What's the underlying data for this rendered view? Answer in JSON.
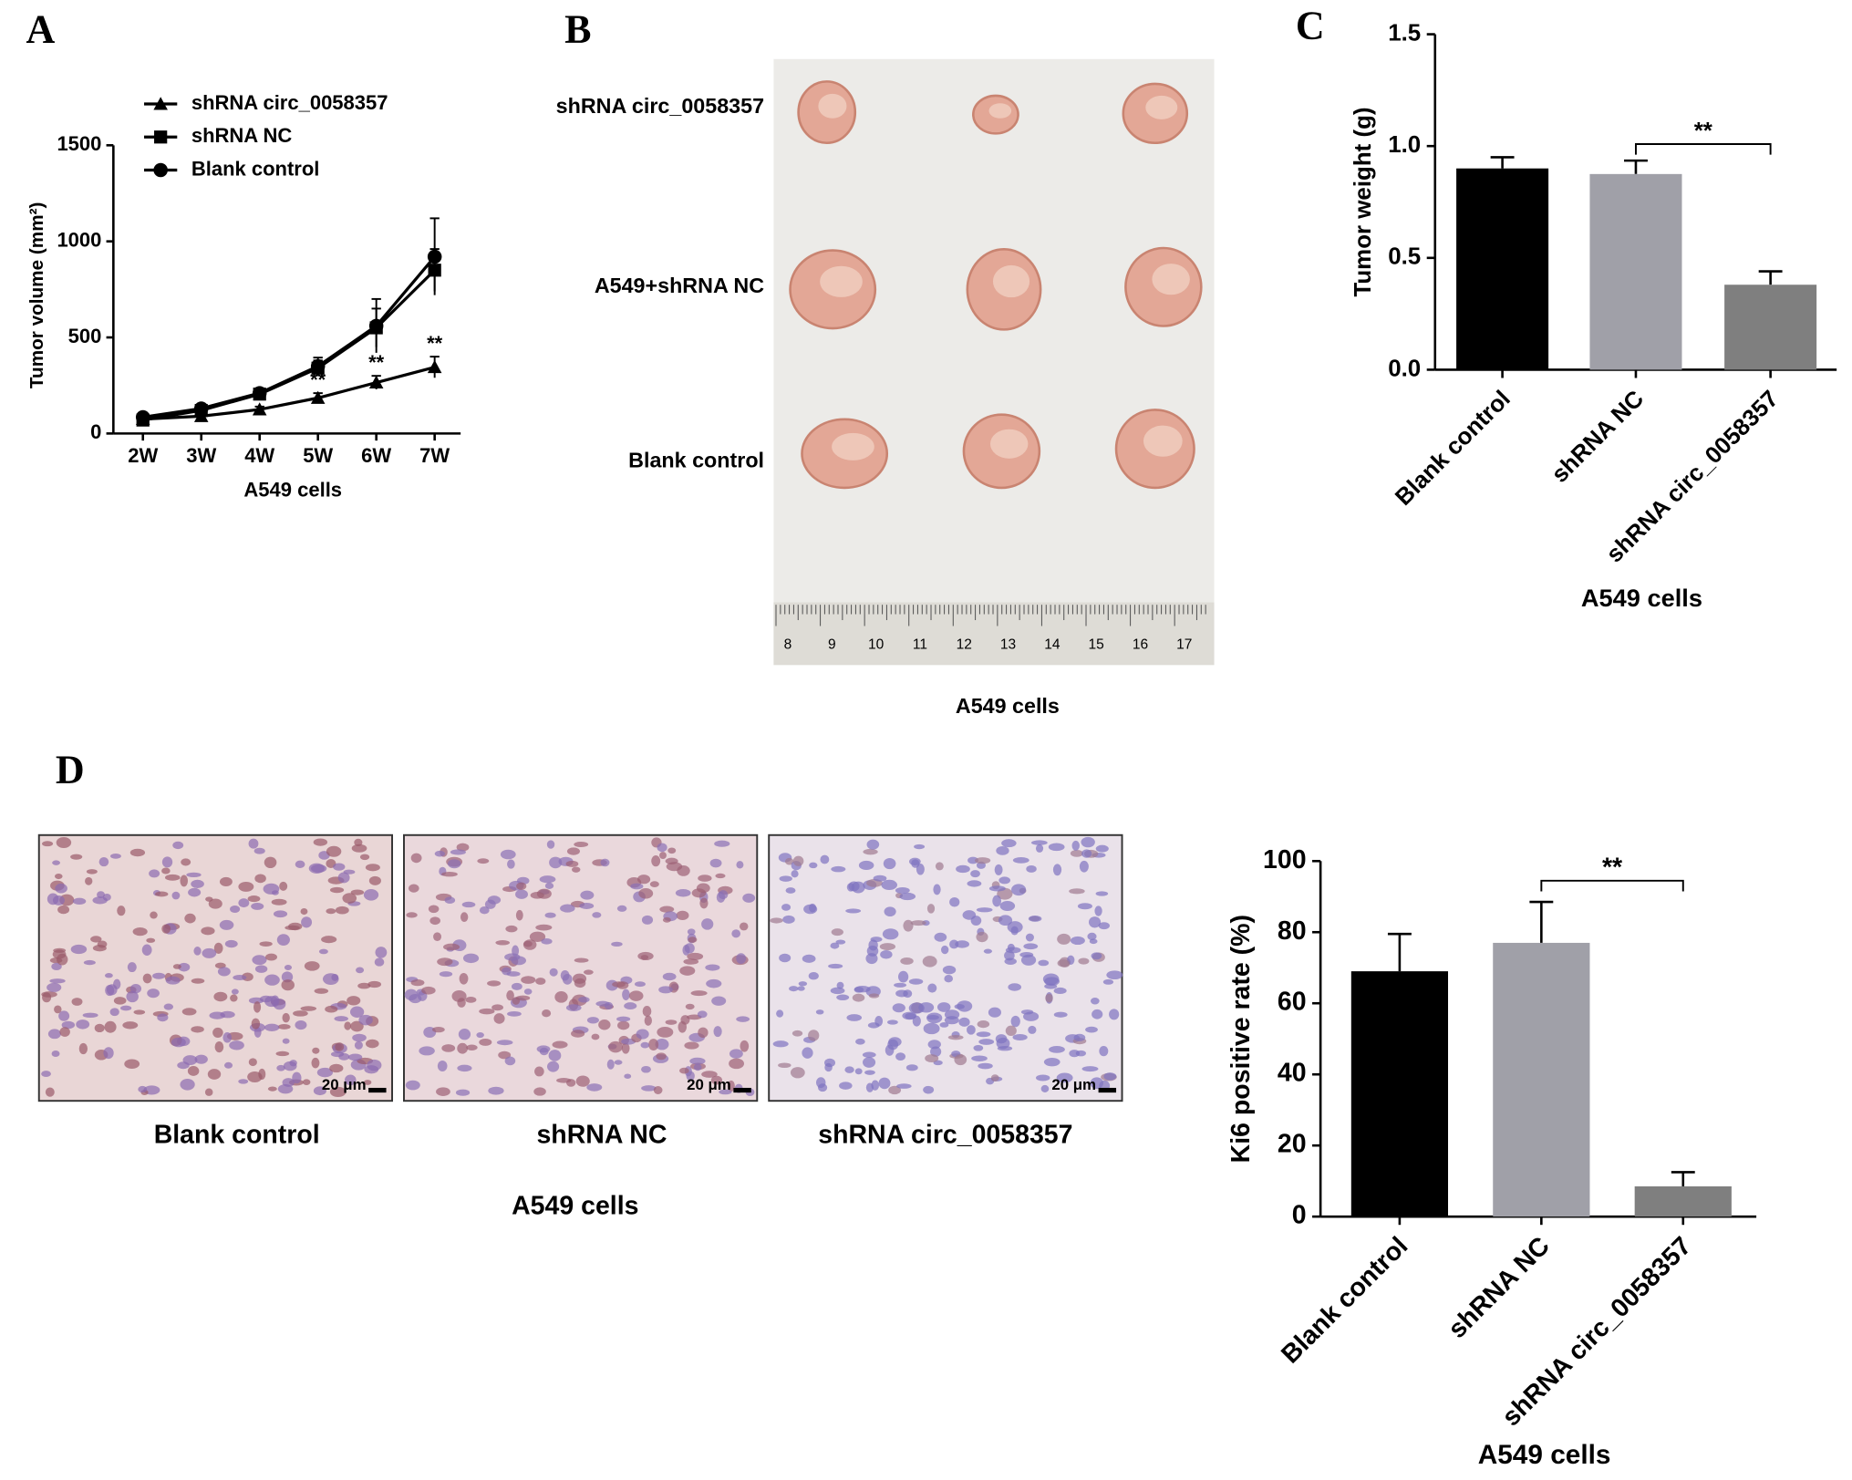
{
  "panel_labels": [
    "A",
    "B",
    "C",
    "D"
  ],
  "chart_data": [
    {
      "type": "line",
      "x_label": "A549 cells",
      "y_label": "Tumor volume (mm²)",
      "categories": [
        "2W",
        "3W",
        "4W",
        "5W",
        "6W",
        "7W"
      ],
      "ylim": [
        0,
        1500
      ],
      "yticks": [
        0,
        500,
        1000,
        1500
      ],
      "legend": "upper-left",
      "series": [
        {
          "name": "shRNA circ_0058357",
          "color": "#000000",
          "marker": "triangle",
          "values": [
            75,
            90,
            125,
            185,
            265,
            345
          ],
          "errors": [
            10,
            12,
            15,
            25,
            35,
            55
          ]
        },
        {
          "name": "shRNA NC",
          "color": "#000000",
          "marker": "square",
          "values": [
            70,
            120,
            205,
            340,
            550,
            850
          ],
          "errors": [
            10,
            15,
            20,
            40,
            100,
            110
          ]
        },
        {
          "name": "Blank control",
          "color": "#000000",
          "marker": "circle",
          "values": [
            85,
            130,
            210,
            350,
            560,
            920
          ],
          "errors": [
            10,
            15,
            20,
            45,
            140,
            200
          ]
        }
      ],
      "annotations": [
        {
          "category": "5W",
          "text": "**"
        },
        {
          "category": "6W",
          "text": "**"
        },
        {
          "category": "7W",
          "text": "**"
        }
      ]
    },
    {
      "type": "bar",
      "x_label": "A549 cells",
      "y_label": "Tumor weight (g)",
      "categories": [
        "Blank control",
        "shRNA NC",
        "shRNA circ_0058357"
      ],
      "values": [
        0.9,
        0.875,
        0.38
      ],
      "errors": [
        0.05,
        0.06,
        0.06
      ],
      "colors": [
        "#000000",
        "#a0a0a8",
        "#7f7f7f"
      ],
      "ylim": [
        0,
        1.5
      ],
      "yticks": [
        {
          "value": 0,
          "label": "0.0"
        },
        {
          "value": 0.5,
          "label": "0.5"
        },
        {
          "value": 1,
          "label": "1.0"
        },
        {
          "value": 1.5,
          "label": "1.5"
        }
      ],
      "significance": "**"
    },
    {
      "type": "bar",
      "x_label": "A549 cells",
      "y_label": "Ki6 positive rate (%)",
      "categories": [
        "Blank control",
        "shRNA NC",
        "shRNA circ_0058357"
      ],
      "values": [
        69,
        77,
        8.5
      ],
      "errors": [
        10.5,
        11.5,
        4
      ],
      "colors": [
        "#000000",
        "#a0a0a8",
        "#7f7f7f"
      ],
      "ylim": [
        0,
        100
      ],
      "yticks": [
        0,
        20,
        40,
        60,
        80,
        100
      ],
      "significance": "**"
    }
  ],
  "photo_b": {
    "row_labels": [
      "shRNA circ_0058357",
      "A549+shRNA NC",
      "Blank control"
    ],
    "ruler_labels": [
      "8",
      "9",
      "10",
      "11",
      "12",
      "13",
      "14",
      "15",
      "16",
      "17"
    ],
    "caption": "A549 cells"
  },
  "micrographs": {
    "labels": [
      "Blank control",
      "shRNA NC",
      "shRNA circ_0058357"
    ],
    "scale_bar": "20 μm",
    "caption": "A549 cells"
  }
}
